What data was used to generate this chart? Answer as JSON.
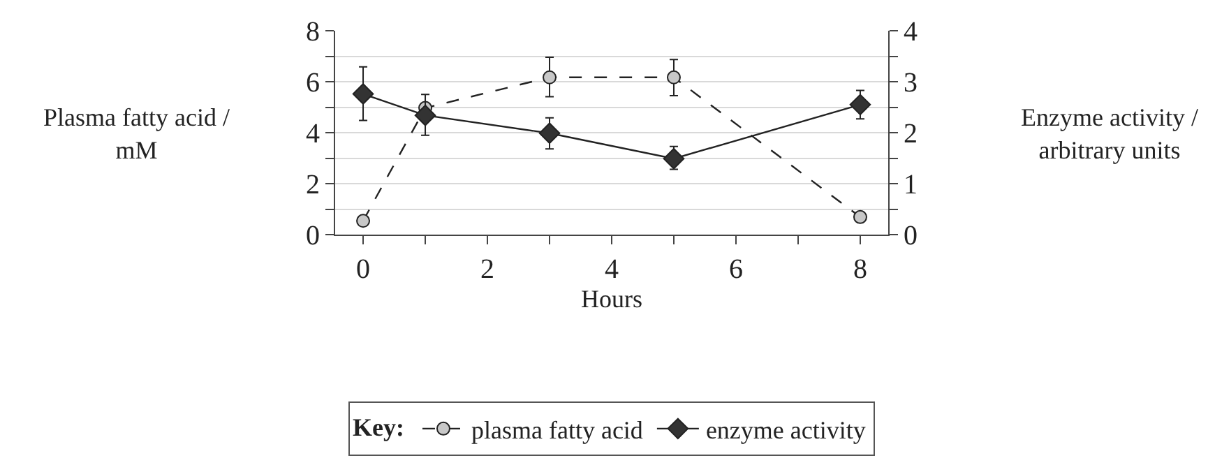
{
  "chart_data": {
    "type": "line",
    "xlabel": "Hours",
    "ylabel": "Plasma fatty acid /\nmM",
    "y2label": "Enzyme activity /\narbitrary units",
    "legend_title": "Key:",
    "x": [
      0,
      1,
      3,
      5,
      8
    ],
    "series": [
      {
        "name": "plasma fatty acid",
        "color": "#c8c8c8",
        "values": [
          0.54,
          4.97,
          6.17,
          6.17,
          0.69
        ],
        "errors": [
          null,
          null,
          [
            5.41,
            6.96
          ],
          [
            5.45,
            6.87
          ],
          null
        ],
        "marker": "circle",
        "line_style": "dashed"
      },
      {
        "name": "enzyme activity",
        "color": "#333333",
        "axis": "y2",
        "values": [
          2.76,
          2.34,
          1.99,
          1.49,
          2.55
        ],
        "errors": [
          [
            2.24,
            3.29
          ],
          [
            1.95,
            2.75
          ],
          [
            1.68,
            2.29
          ],
          [
            1.28,
            1.73
          ],
          [
            2.27,
            2.83
          ]
        ],
        "marker": "diamond",
        "line_style": "solid"
      }
    ],
    "xlim": [
      -0.45,
      8.45
    ],
    "xticks": [
      0,
      {
        "value": 1,
        "label": null
      },
      2,
      {
        "value": 3,
        "label": null
      },
      4,
      {
        "value": 5,
        "label": null
      },
      6,
      {
        "value": 7,
        "label": null
      },
      8
    ],
    "ylim": [
      0,
      8
    ],
    "yticks": [
      0,
      {
        "value": 1,
        "label": null
      },
      2,
      {
        "value": 3,
        "label": null
      },
      4,
      {
        "value": 5,
        "label": null
      },
      6,
      {
        "value": 7,
        "label": null
      },
      8
    ],
    "y2lim": [
      0,
      4
    ],
    "y2ticks": [
      0,
      {
        "value": 0.5,
        "label": null
      },
      1,
      {
        "value": 1.5,
        "label": null
      },
      2,
      {
        "value": 2.5,
        "label": null
      },
      3,
      {
        "value": 3.5,
        "label": null
      },
      4
    ],
    "grid": "y",
    "legend": "bottom"
  }
}
